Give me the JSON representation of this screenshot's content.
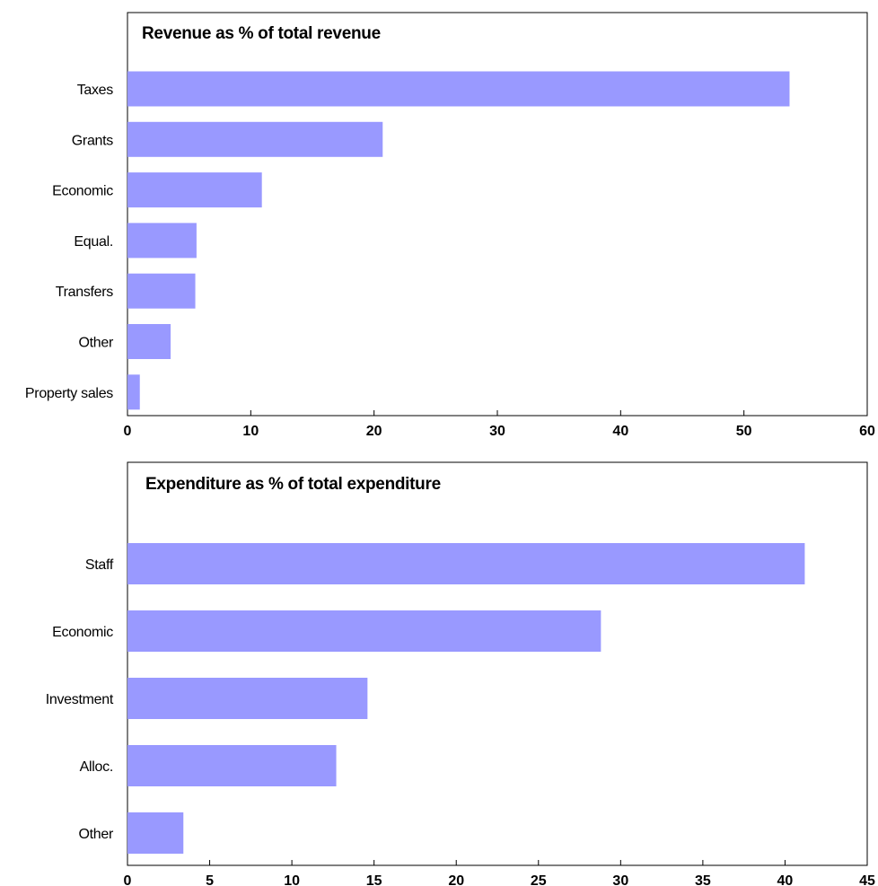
{
  "chart_data": [
    {
      "type": "bar",
      "orientation": "horizontal",
      "title": "Revenue as % of total revenue",
      "categories": [
        "Taxes",
        "Grants",
        "Economic",
        "Equal.",
        "Transfers",
        "Other",
        "Property sales"
      ],
      "values": [
        53.7,
        20.7,
        10.9,
        5.6,
        5.5,
        3.5,
        1.0
      ],
      "xlim": [
        0,
        60
      ],
      "xticks": [
        "0",
        "10",
        "20",
        "30",
        "40",
        "50",
        "60"
      ],
      "color": "#9999ff",
      "grid": false,
      "legend": "none"
    },
    {
      "type": "bar",
      "orientation": "horizontal",
      "title": "Expenditure as % of total expenditure",
      "categories": [
        "Staff",
        "Economic",
        "Investment",
        "Alloc.",
        "Other"
      ],
      "values": [
        41.2,
        28.8,
        14.6,
        12.7,
        3.4
      ],
      "xlim": [
        0,
        45
      ],
      "xticks": [
        "0",
        "5",
        "10",
        "15",
        "20",
        "25",
        "30",
        "35",
        "40",
        "45"
      ],
      "color": "#9999ff",
      "grid": false,
      "legend": "none"
    }
  ]
}
